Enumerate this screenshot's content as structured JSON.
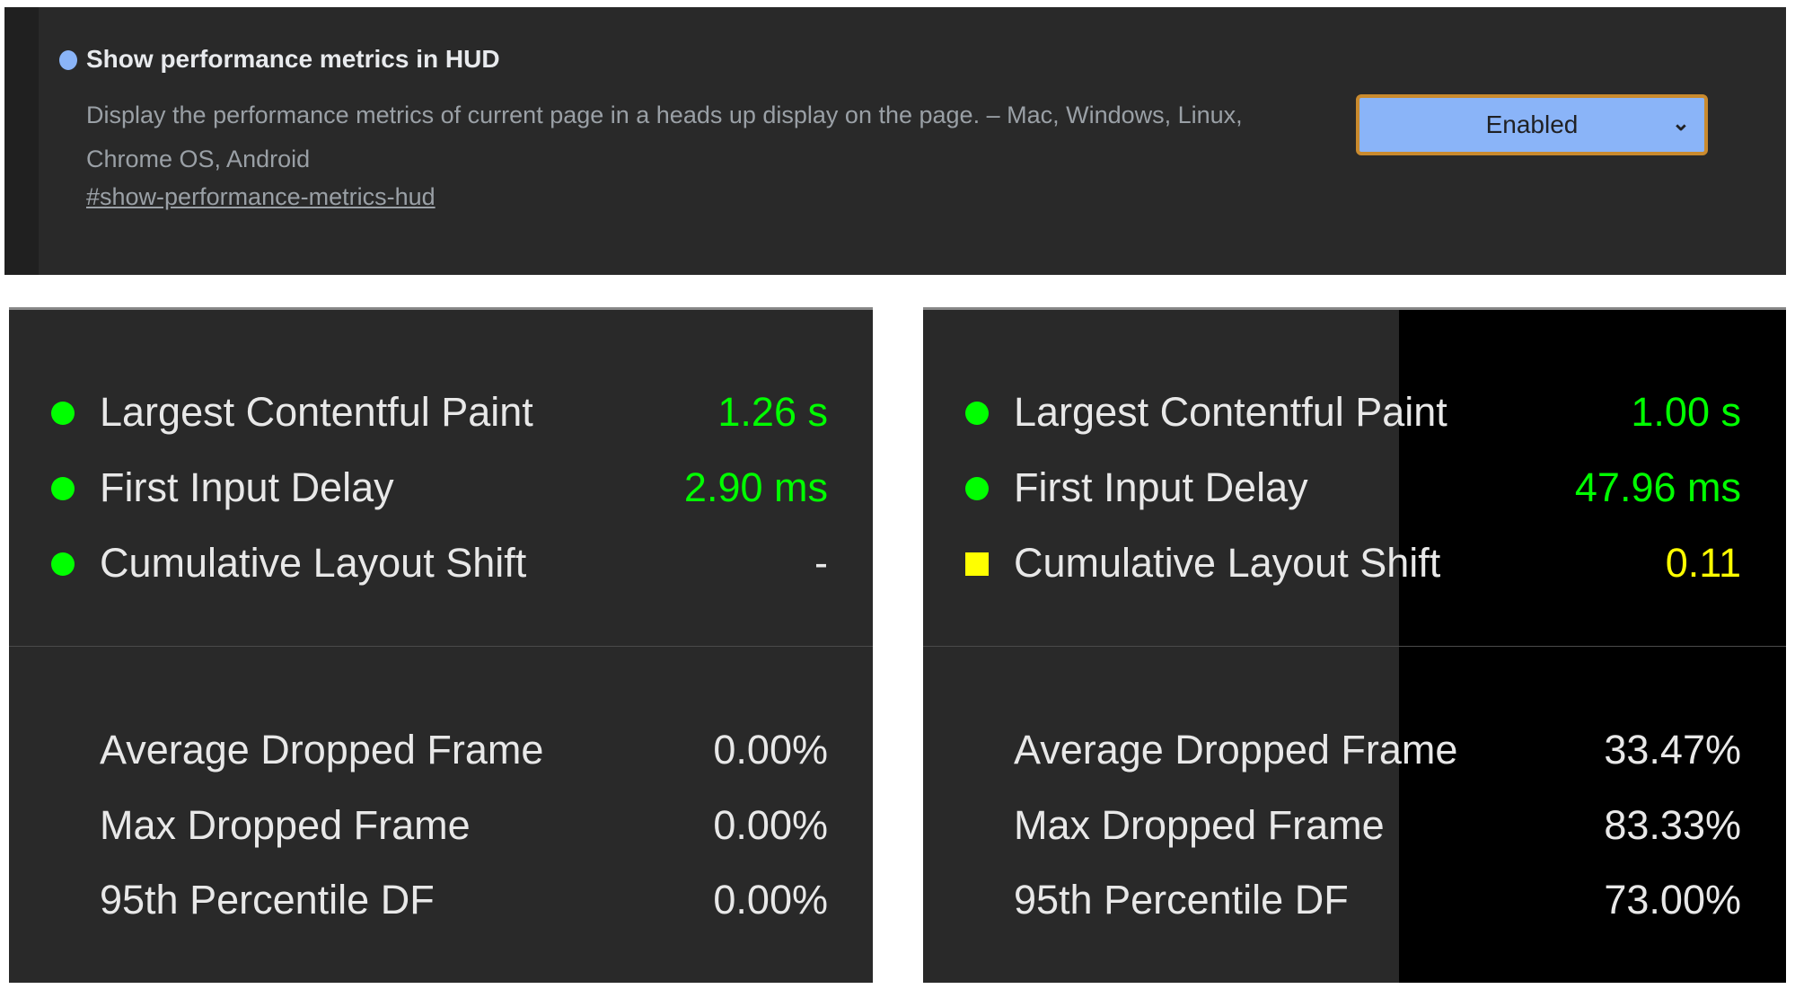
{
  "flag": {
    "title": "Show performance metrics in HUD",
    "description": "Display the performance metrics of current page in a heads up display on the page. – Mac, Windows, Linux, Chrome OS, Android",
    "link": "#show-performance-metrics-hud",
    "select_value": "Enabled",
    "dot_color": "#8ab4f8"
  },
  "colors": {
    "good": "#00ff00",
    "needs_improvement": "#ffff00",
    "text": "#e8e8e8"
  },
  "hud_left": {
    "web_vitals": [
      {
        "label": "Largest Contentful Paint",
        "value": "1.26 s",
        "status": "good",
        "indicator": "circle"
      },
      {
        "label": "First Input Delay",
        "value": "2.90 ms",
        "status": "good",
        "indicator": "circle"
      },
      {
        "label": "Cumulative Layout Shift",
        "value": "-",
        "status": "good",
        "indicator": "circle"
      }
    ],
    "frames": [
      {
        "label": "Average Dropped Frame",
        "value": "0.00%"
      },
      {
        "label": "Max Dropped Frame",
        "value": "0.00%"
      },
      {
        "label": "95th Percentile DF",
        "value": "0.00%"
      }
    ]
  },
  "hud_right": {
    "web_vitals": [
      {
        "label": "Largest Contentful Paint",
        "value": "1.00 s",
        "status": "good",
        "indicator": "circle"
      },
      {
        "label": "First Input Delay",
        "value": "47.96 ms",
        "status": "good",
        "indicator": "circle"
      },
      {
        "label": "Cumulative Layout Shift",
        "value": "0.11",
        "status": "needs_improvement",
        "indicator": "square"
      }
    ],
    "frames": [
      {
        "label": "Average Dropped Frame",
        "value": "33.47%"
      },
      {
        "label": "Max Dropped Frame",
        "value": "83.33%"
      },
      {
        "label": "95th Percentile DF",
        "value": "73.00%"
      }
    ]
  }
}
